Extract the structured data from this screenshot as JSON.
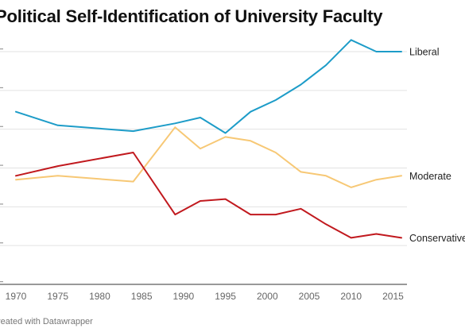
{
  "chart_data": {
    "type": "line",
    "title": "Political Self-Identification of University Faculty",
    "xlabel": "",
    "ylabel": "",
    "x": [
      1970,
      1975,
      1984,
      1989,
      1992,
      1995,
      1998,
      2001,
      2004,
      2007,
      2010,
      2013,
      2016
    ],
    "x_ticks": [
      1970,
      1975,
      1980,
      1985,
      1990,
      1995,
      2000,
      2005,
      2010,
      2015
    ],
    "xlim": [
      1969,
      2016
    ],
    "ylim": [
      0,
      60
    ],
    "y_ticks": [
      0,
      10,
      20,
      30,
      40,
      50,
      60
    ],
    "grid": true,
    "legend": "direct labels at line ends (right)",
    "series": [
      {
        "name": "Liberal",
        "color": "#1d9cc8",
        "values": [
          44.5,
          41,
          39.5,
          41.5,
          43,
          39,
          44.5,
          47.5,
          51.5,
          56.5,
          63,
          60,
          60
        ]
      },
      {
        "name": "Moderate",
        "color": "#f7c875",
        "values": [
          27,
          28,
          26.5,
          40.5,
          35,
          38,
          37,
          34,
          29,
          28,
          25,
          27,
          28
        ]
      },
      {
        "name": "Conservative",
        "color": "#c1191e",
        "values": [
          28,
          30.5,
          34,
          18,
          21.5,
          22,
          18,
          18,
          19.5,
          15.5,
          12,
          13,
          12
        ]
      }
    ]
  },
  "footer": {
    "credit": "reated with Datawrapper"
  }
}
